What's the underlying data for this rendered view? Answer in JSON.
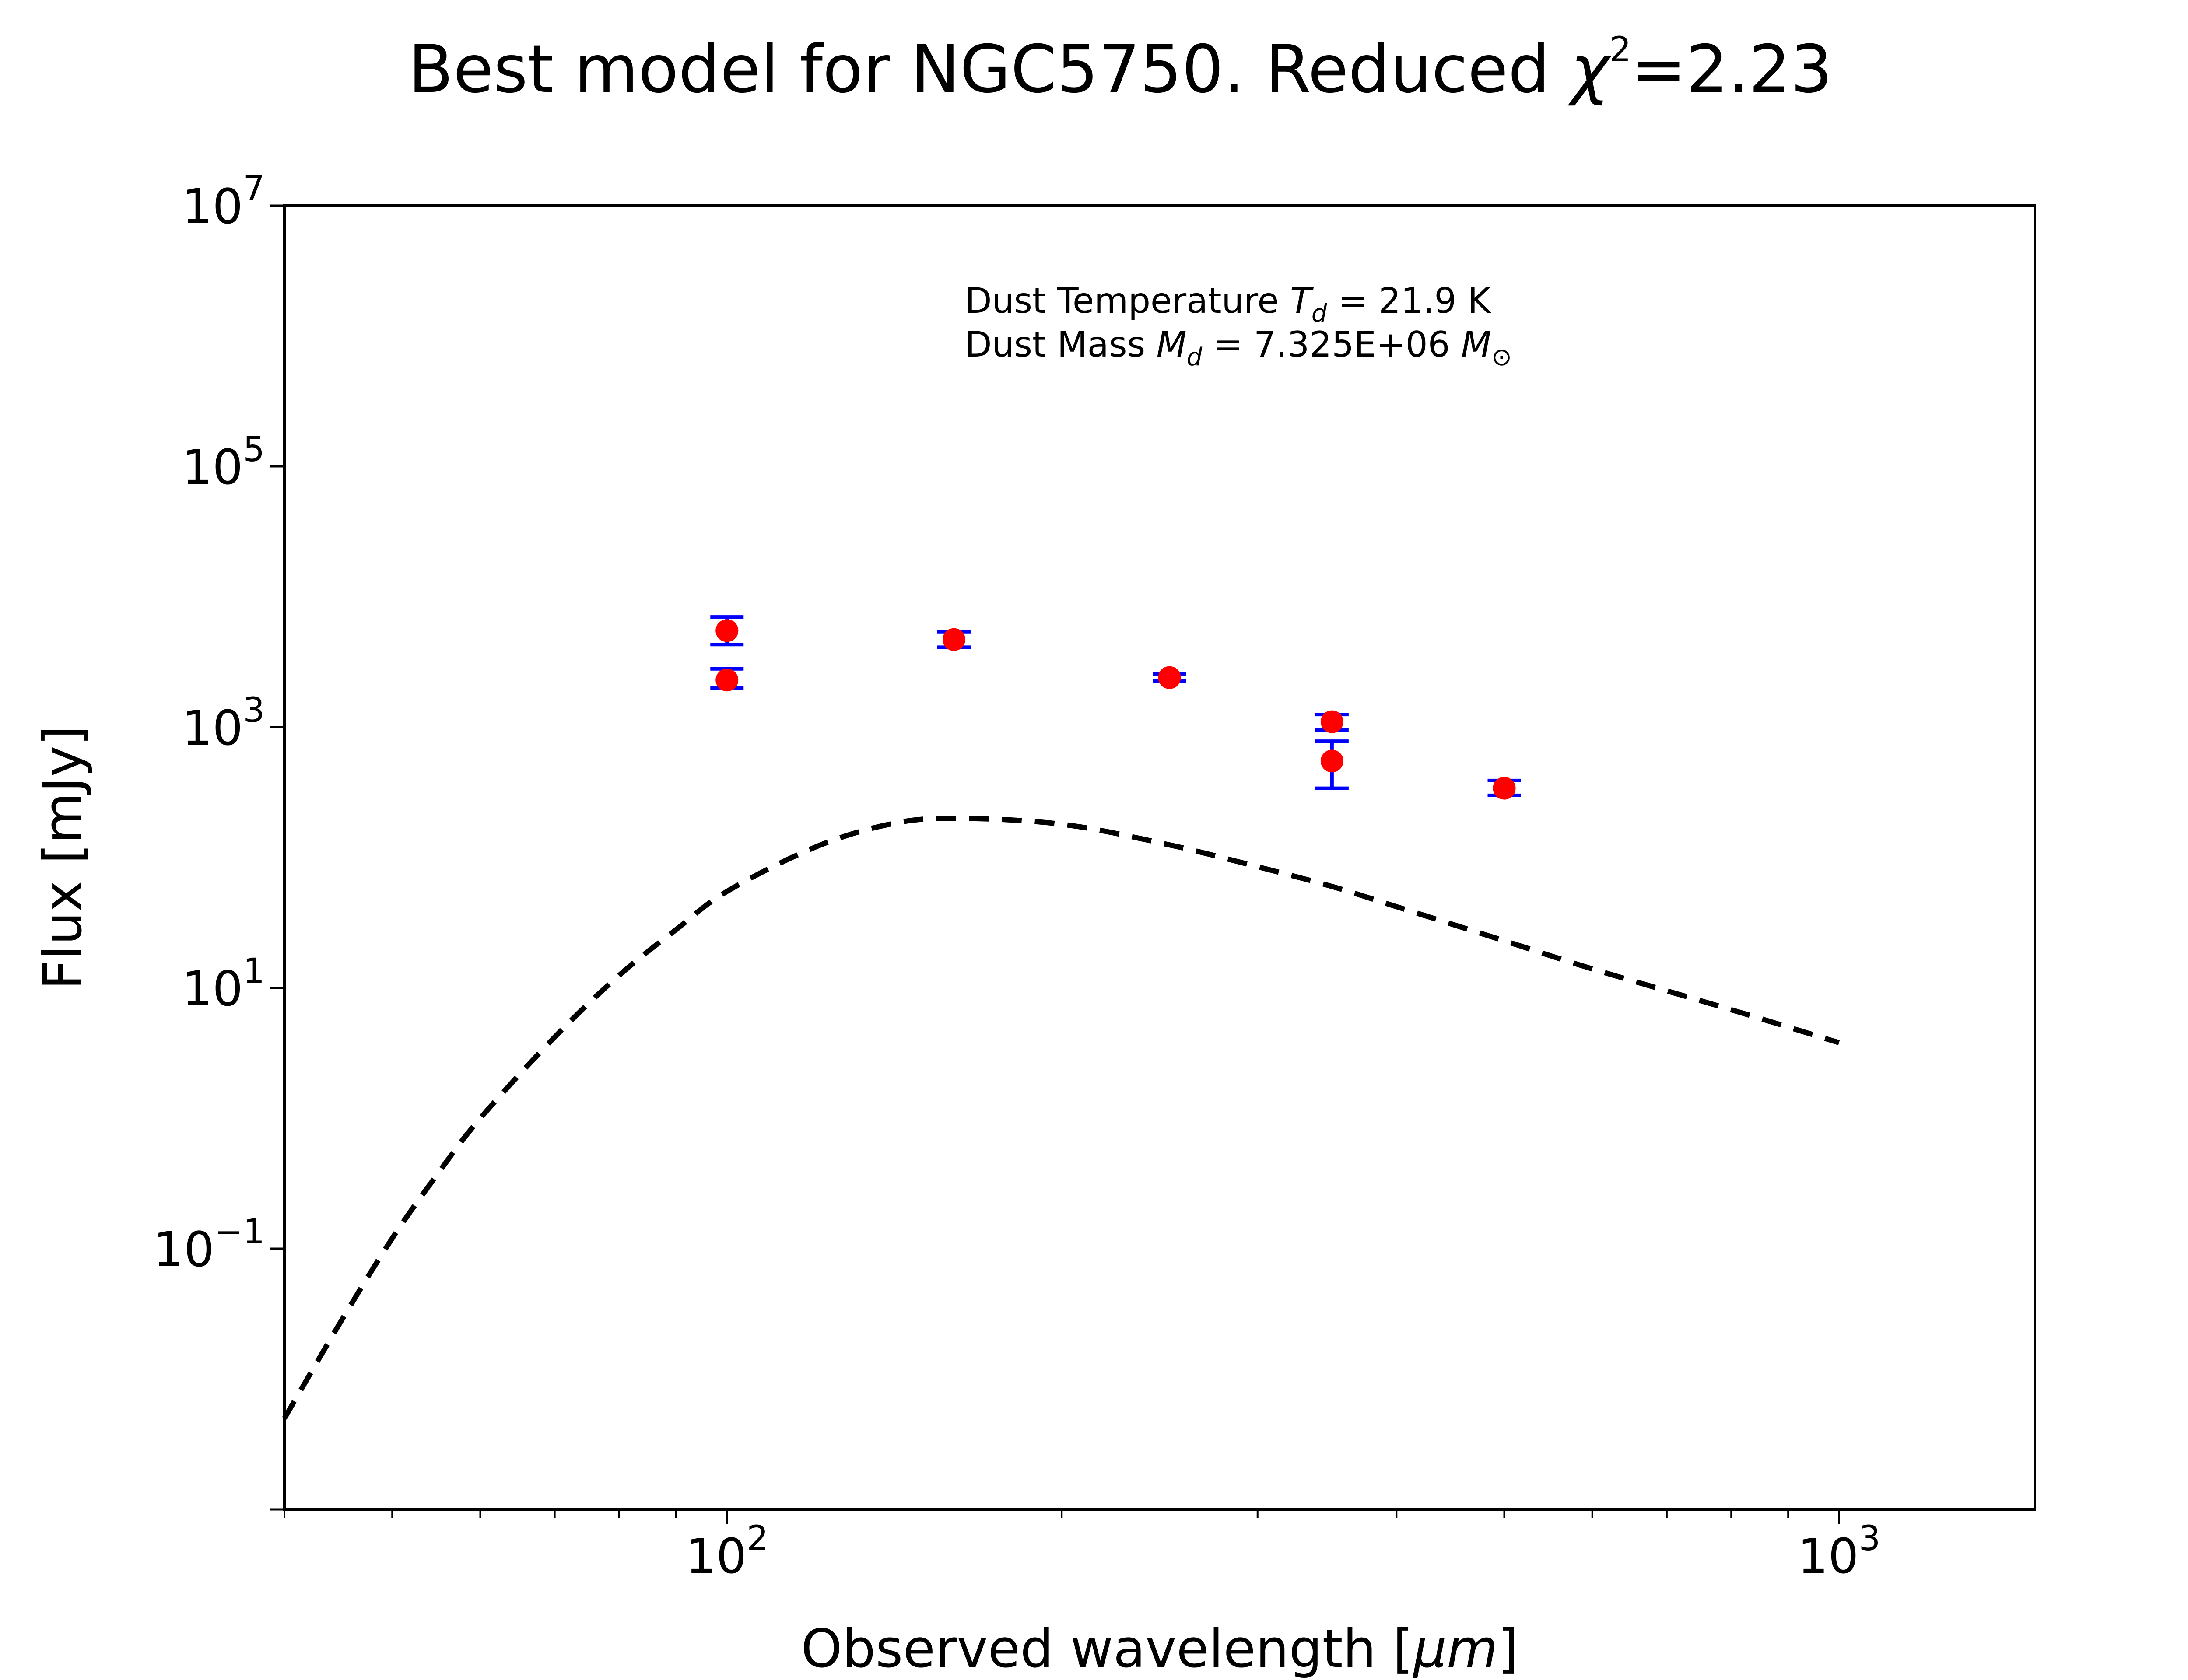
{
  "chart_data": {
    "type": "scatter",
    "title": "Best model for NGC5750. Reduced χ²=2.23",
    "title_main": "Best model for NGC5750. Reduced ",
    "title_chi": "χ",
    "title_chi_exp": "2",
    "title_value": "=2.23",
    "xlabel": "Observed wavelength [μm]",
    "xlabel_main": "Observed wavelength [",
    "xlabel_unit": "μm",
    "xlabel_close": "]",
    "ylabel": "Flux [mJy]",
    "xscale": "log",
    "yscale": "log",
    "xlim": [
      40,
      1500
    ],
    "ylim": [
      0.001,
      10000000
    ],
    "grid": false,
    "legend": "none",
    "x_ticks": [
      {
        "value": 100,
        "base": "10",
        "exp": "2"
      },
      {
        "value": 1000,
        "base": "10",
        "exp": "3"
      }
    ],
    "y_ticks": [
      {
        "value": 0.1,
        "base": "10",
        "exp": "−1"
      },
      {
        "value": 10,
        "base": "10",
        "exp": "1"
      },
      {
        "value": 1000,
        "base": "10",
        "exp": "3"
      },
      {
        "value": 100000,
        "base": "10",
        "exp": "5"
      },
      {
        "value": 10000000,
        "base": "10",
        "exp": "7"
      }
    ],
    "annotations": [
      {
        "prefix": "Dust Temperature ",
        "sym": "T",
        "sub": "d",
        "suffix": " = 21.9 K"
      },
      {
        "prefix": "Dust Mass ",
        "sym": "M",
        "sub": "d",
        "suffix": " = 7.325E+06 ",
        "sym2": "M",
        "sub2": "⊙"
      }
    ],
    "series": [
      {
        "kind": "points",
        "color": "#ff0000",
        "errorbar_color": "#0000ff",
        "points": [
          {
            "x": 100,
            "y": 2300,
            "err_low": 2000,
            "err_high": 2800
          },
          {
            "x": 100,
            "y": 5500,
            "err_low": 4300,
            "err_high": 7000
          },
          {
            "x": 160,
            "y": 4700,
            "err_low": 4100,
            "err_high": 5400
          },
          {
            "x": 250,
            "y": 2400,
            "err_low": 2250,
            "err_high": 2550
          },
          {
            "x": 350,
            "y": 1100,
            "err_low": 950,
            "err_high": 1250
          },
          {
            "x": 350,
            "y": 550,
            "err_low": 340,
            "err_high": 780
          },
          {
            "x": 500,
            "y": 340,
            "err_low": 300,
            "err_high": 390
          }
        ]
      },
      {
        "kind": "model",
        "style": "dashed",
        "color": "#000000",
        "x": [
          40,
          45,
          50,
          55,
          60,
          70,
          80,
          90,
          100,
          120,
          140,
          160,
          200,
          250,
          300,
          350,
          400,
          500,
          600,
          800,
          1000
        ],
        "y": [
          0.005,
          0.028,
          0.12,
          0.38,
          1.0,
          4.2,
          12.5,
          28,
          55,
          120,
          180,
          200,
          180,
          125,
          85,
          60,
          42,
          23,
          14,
          6.8,
          3.8
        ]
      }
    ]
  }
}
